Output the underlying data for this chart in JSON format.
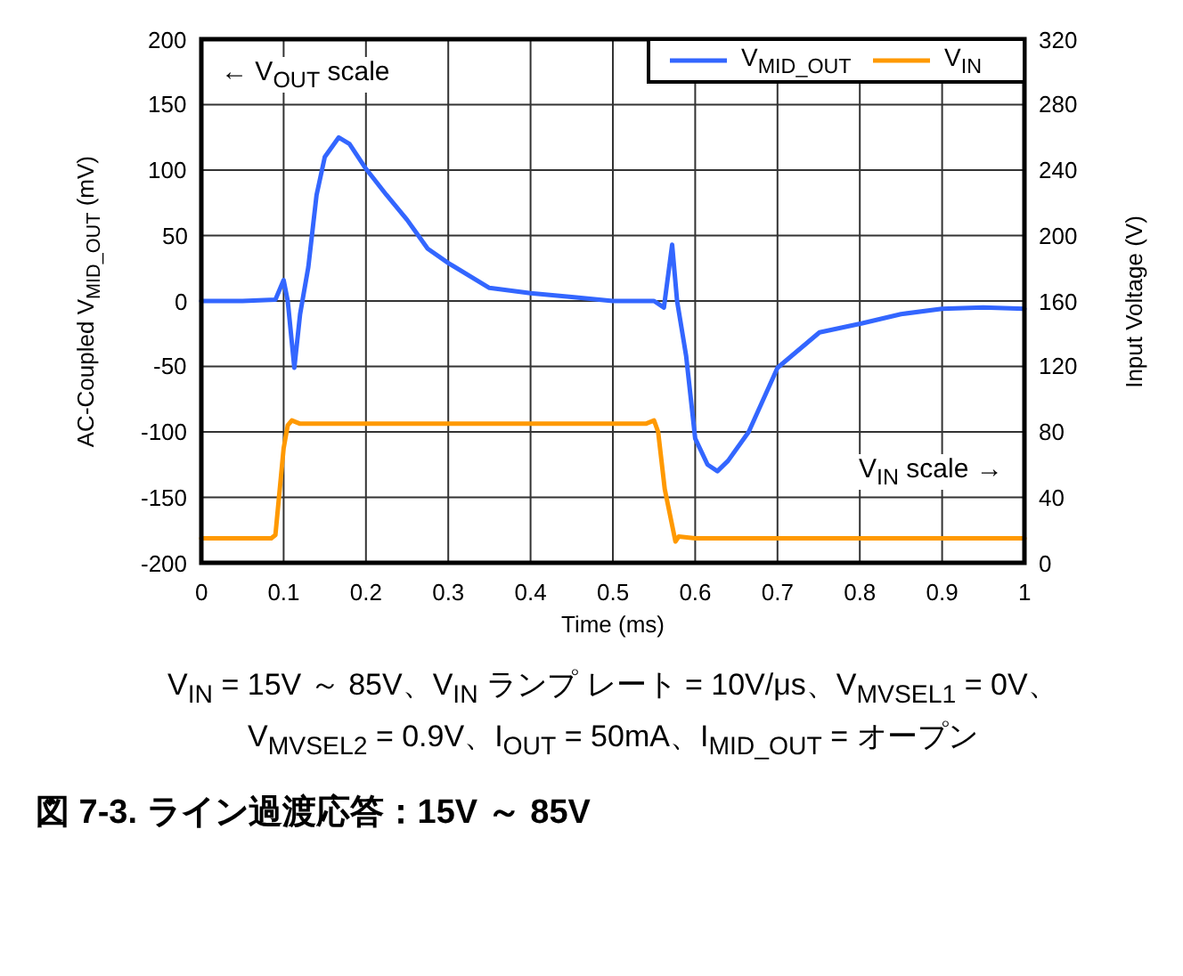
{
  "chart_data": {
    "type": "line",
    "title": "図 7-3. ライン過渡応答：15V ～ 85V",
    "xlabel": "Time (ms)",
    "ylabel": "AC-Coupled V$_{MID_OUT}$ (mV)",
    "y2label": "Input Voltage (V)",
    "annotations": [
      "← V$_{OUT}$ scale",
      "V$_{IN}$ scale →",
      "V$_{IN}$ = 15V ～ 85V、V$_{IN}$ ランプ レート = 10V/μs、V$_{MVSEL1}$ = 0V、",
      "V$_{MVSEL2}$ = 0.9V、I$_{OUT}$ = 50mA、I$_{MID_OUT}$ = オープン"
    ],
    "xlim": [
      0,
      1
    ],
    "xticks": [
      0,
      0.1,
      0.2,
      0.3,
      0.4,
      0.5,
      0.6,
      0.7,
      0.8,
      0.9,
      1
    ],
    "ylim": [
      -200,
      200
    ],
    "yticks": [
      -200,
      -150,
      -100,
      -50,
      0,
      50,
      100,
      150,
      200
    ],
    "y2lim": [
      0,
      320
    ],
    "y2ticks": [
      0,
      40,
      80,
      120,
      160,
      200,
      240,
      280,
      320
    ],
    "grid": true,
    "legend": "top right",
    "series": [
      {
        "name": "V$_{MID_OUT}$",
        "color": "#3366ff",
        "x": [
          0,
          0.05,
          0.09,
          0.1,
          0.105,
          0.113,
          0.12,
          0.13,
          0.14,
          0.15,
          0.167,
          0.18,
          0.2,
          0.225,
          0.25,
          0.275,
          0.3,
          0.35,
          0.4,
          0.45,
          0.5,
          0.55,
          0.562,
          0.572,
          0.578,
          0.589,
          0.6,
          0.615,
          0.627,
          0.64,
          0.665,
          0.7,
          0.751,
          0.803,
          0.85,
          0.9,
          0.95,
          1
        ],
        "values": [
          0,
          0,
          1,
          16,
          0,
          -51,
          -10,
          26,
          81,
          110,
          125,
          120,
          101,
          81,
          62,
          40,
          29,
          10,
          6,
          3,
          0,
          0,
          -5,
          43,
          0,
          -42,
          -105,
          -125,
          -130,
          -122,
          -100,
          -51,
          -24,
          -17,
          -10,
          -6,
          -5,
          -6
        ]
      },
      {
        "name": "V$_{IN}$",
        "color": "#ff9900",
        "axis": "y2",
        "x": [
          0,
          0.085,
          0.09,
          0.1,
          0.105,
          0.11,
          0.12,
          0.3,
          0.54,
          0.55,
          0.555,
          0.563,
          0.576,
          0.58,
          0.6,
          1
        ],
        "values": [
          15,
          15,
          17,
          70,
          84,
          87,
          85,
          85,
          85,
          87,
          80,
          45,
          13,
          16,
          15,
          15
        ]
      }
    ]
  }
}
